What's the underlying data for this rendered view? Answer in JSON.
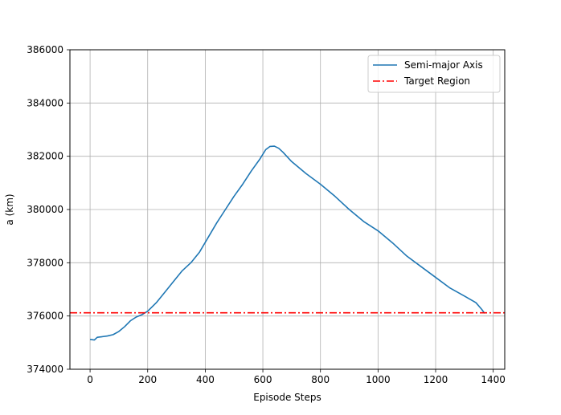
{
  "chart_data": {
    "type": "line",
    "xlabel": "Episode Steps",
    "ylabel": "a (km)",
    "xlim": [
      -70,
      1440
    ],
    "ylim": [
      374000,
      386000
    ],
    "xticks": [
      0,
      200,
      400,
      600,
      800,
      1000,
      1200,
      1400
    ],
    "yticks": [
      374000,
      376000,
      378000,
      380000,
      382000,
      384000,
      386000
    ],
    "grid": true,
    "legend_position": "top-right",
    "series": [
      {
        "name": "Semi-major Axis",
        "color": "#1f77b4",
        "style": "solid",
        "x": [
          0,
          15,
          25,
          40,
          60,
          80,
          100,
          120,
          140,
          160,
          180,
          200,
          230,
          260,
          290,
          320,
          350,
          380,
          410,
          440,
          470,
          500,
          530,
          560,
          590,
          610,
          625,
          640,
          655,
          670,
          700,
          750,
          800,
          850,
          900,
          950,
          1000,
          1050,
          1100,
          1150,
          1200,
          1250,
          1300,
          1340,
          1360,
          1370
        ],
        "y": [
          375120,
          375100,
          375200,
          375220,
          375250,
          375300,
          375420,
          375600,
          375820,
          375960,
          376050,
          376180,
          376500,
          376900,
          377300,
          377700,
          378000,
          378400,
          378950,
          379500,
          380000,
          380500,
          380950,
          381450,
          381900,
          382250,
          382370,
          382380,
          382300,
          382150,
          381800,
          381350,
          380950,
          380500,
          380000,
          379550,
          379200,
          378750,
          378250,
          377850,
          377450,
          377050,
          376750,
          376500,
          376250,
          376100
        ]
      },
      {
        "name": "Target Region",
        "color": "#ff0000",
        "style": "dashdot",
        "x": [
          -70,
          1440
        ],
        "y": [
          376120,
          376120
        ]
      }
    ]
  }
}
